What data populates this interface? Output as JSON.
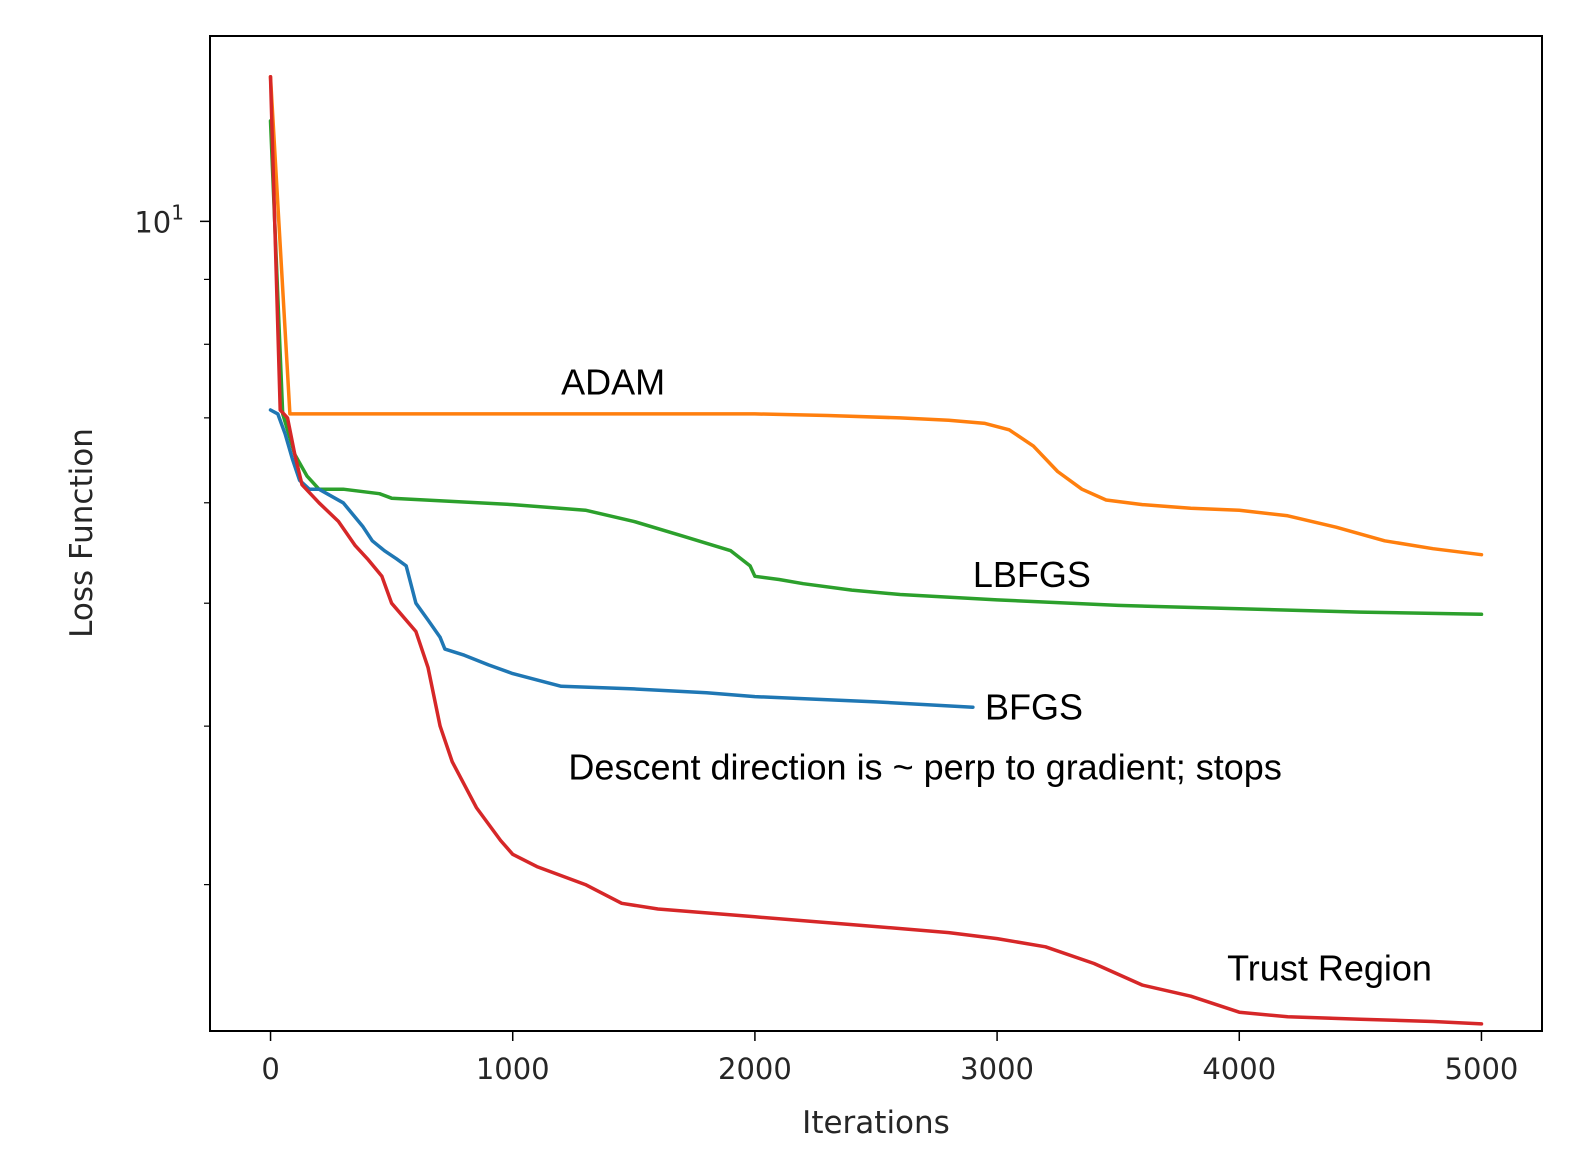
{
  "chart_data": {
    "type": "line",
    "title": "",
    "xlabel": "Iterations",
    "ylabel": "Loss Function",
    "xlim": [
      -250,
      5250
    ],
    "ylim": [
      2.3,
      14.0
    ],
    "yscale": "log",
    "xticks": [
      {
        "value": 0,
        "label": "0"
      },
      {
        "value": 1000,
        "label": "1000"
      },
      {
        "value": 2000,
        "label": "2000"
      },
      {
        "value": 3000,
        "label": "3000"
      },
      {
        "value": 4000,
        "label": "4000"
      },
      {
        "value": 5000,
        "label": "5000"
      }
    ],
    "yticks_major": [
      {
        "value": 10,
        "base": "10",
        "exponent": "1"
      }
    ],
    "yticks_minor": [
      3,
      4,
      5,
      6,
      7,
      8,
      9,
      20
    ],
    "grid": false,
    "legend": "none",
    "series": [
      {
        "color": "#ff7f0e",
        "x": [
          0,
          80,
          200,
          500,
          1000,
          1500,
          2000,
          2300,
          2600,
          2800,
          2950,
          3050,
          3150,
          3250,
          3350,
          3450,
          3600,
          3800,
          4000,
          4200,
          4400,
          4600,
          4800,
          5000
        ],
        "y": [
          13.0,
          7.05,
          7.05,
          7.05,
          7.05,
          7.05,
          7.05,
          7.03,
          7.0,
          6.97,
          6.93,
          6.85,
          6.65,
          6.35,
          6.15,
          6.03,
          5.98,
          5.94,
          5.92,
          5.86,
          5.74,
          5.6,
          5.52,
          5.46
        ]
      },
      {
        "color": "#2ca02c",
        "x": [
          0,
          50,
          100,
          150,
          200,
          300,
          450,
          500,
          1000,
          1300,
          1500,
          1700,
          1900,
          1980,
          2000,
          2100,
          2200,
          2400,
          2600,
          3000,
          3500,
          4000,
          4500,
          5000
        ],
        "y": [
          12.0,
          7.05,
          6.55,
          6.3,
          6.15,
          6.15,
          6.1,
          6.05,
          5.98,
          5.92,
          5.8,
          5.65,
          5.5,
          5.35,
          5.25,
          5.22,
          5.18,
          5.12,
          5.08,
          5.03,
          4.98,
          4.95,
          4.92,
          4.9
        ]
      },
      {
        "color": "#1f77b4",
        "x": [
          0,
          30,
          60,
          90,
          120,
          160,
          200,
          300,
          380,
          420,
          470,
          520,
          560,
          600,
          650,
          700,
          720,
          800,
          900,
          1000,
          1100,
          1200,
          1500,
          1800,
          2000,
          2500,
          2900
        ],
        "y": [
          7.1,
          7.05,
          6.8,
          6.5,
          6.25,
          6.15,
          6.15,
          6.0,
          5.75,
          5.6,
          5.5,
          5.42,
          5.35,
          5.0,
          4.85,
          4.7,
          4.6,
          4.55,
          4.47,
          4.4,
          4.35,
          4.3,
          4.28,
          4.25,
          4.22,
          4.18,
          4.14
        ]
      },
      {
        "color": "#d62728",
        "x": [
          0,
          40,
          70,
          100,
          130,
          200,
          280,
          350,
          400,
          460,
          500,
          600,
          650,
          700,
          750,
          850,
          950,
          1000,
          1100,
          1300,
          1450,
          1600,
          2000,
          2400,
          2800,
          3000,
          3200,
          3400,
          3600,
          3800,
          4000,
          4200,
          4500,
          4800,
          5000
        ],
        "y": [
          13.0,
          7.1,
          7.0,
          6.55,
          6.2,
          6.0,
          5.8,
          5.55,
          5.42,
          5.25,
          5.0,
          4.75,
          4.45,
          4.0,
          3.75,
          3.45,
          3.25,
          3.17,
          3.1,
          3.0,
          2.9,
          2.87,
          2.83,
          2.79,
          2.75,
          2.72,
          2.68,
          2.6,
          2.5,
          2.45,
          2.38,
          2.36,
          2.35,
          2.34,
          2.33
        ]
      }
    ],
    "annotations": [
      {
        "text": "ADAM",
        "x": 1200,
        "y": 7.3
      },
      {
        "text": "LBFGS",
        "x": 2900,
        "y": 5.15
      },
      {
        "text": "BFGS",
        "x": 2950,
        "y": 4.05
      },
      {
        "text": "Descent direction is ~ perp to gradient; stops",
        "x": 1230,
        "y": 3.63
      },
      {
        "text": "Trust Region",
        "x": 3950,
        "y": 2.52
      }
    ],
    "line_colors": {
      "adam": "#ff7f0e",
      "lbfgs": "#2ca02c",
      "bfgs": "#1f77b4",
      "trust_region": "#d62728"
    }
  }
}
